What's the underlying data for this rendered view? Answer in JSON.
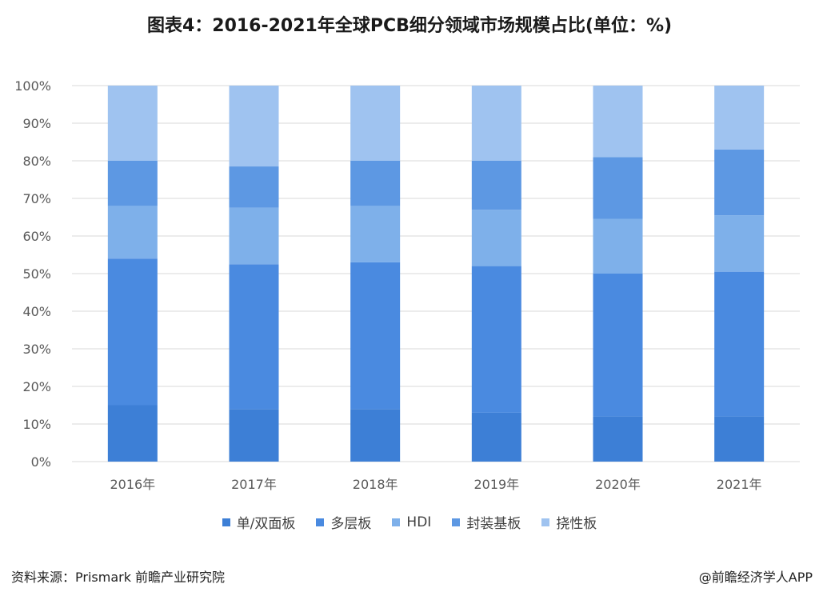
{
  "chart_data": {
    "type": "bar",
    "stacked": true,
    "title": "图表4：2016-2021年全球PCB细分领域市场规模占比(单位：%)",
    "categories": [
      "2016年",
      "2017年",
      "2018年",
      "2019年",
      "2020年",
      "2021年"
    ],
    "ylim": [
      0,
      100
    ],
    "yticks": [
      "0%",
      "10%",
      "20%",
      "30%",
      "40%",
      "50%",
      "60%",
      "70%",
      "80%",
      "90%",
      "100%"
    ],
    "grid": true,
    "legend_position": "bottom",
    "series": [
      {
        "name": "单/双面板",
        "color": "#3d7fd6",
        "values": [
          15,
          14,
          14,
          13,
          12,
          12
        ]
      },
      {
        "name": "多层板",
        "color": "#4a8ae0",
        "values": [
          39,
          38.5,
          39,
          39,
          38,
          38.5
        ]
      },
      {
        "name": "HDI",
        "color": "#7eb0ea",
        "values": [
          14,
          15,
          15,
          15,
          14.5,
          15
        ]
      },
      {
        "name": "封装基板",
        "color": "#5d98e3",
        "values": [
          12,
          11,
          12,
          13,
          16.5,
          17.5
        ]
      },
      {
        "name": "挠性板",
        "color": "#9fc3f0",
        "values": [
          20,
          21.5,
          20,
          20,
          19,
          17
        ]
      }
    ]
  },
  "footer": {
    "source": "资料来源：Prismark 前瞻产业研究院",
    "credit": "@前瞻经济学人APP"
  }
}
